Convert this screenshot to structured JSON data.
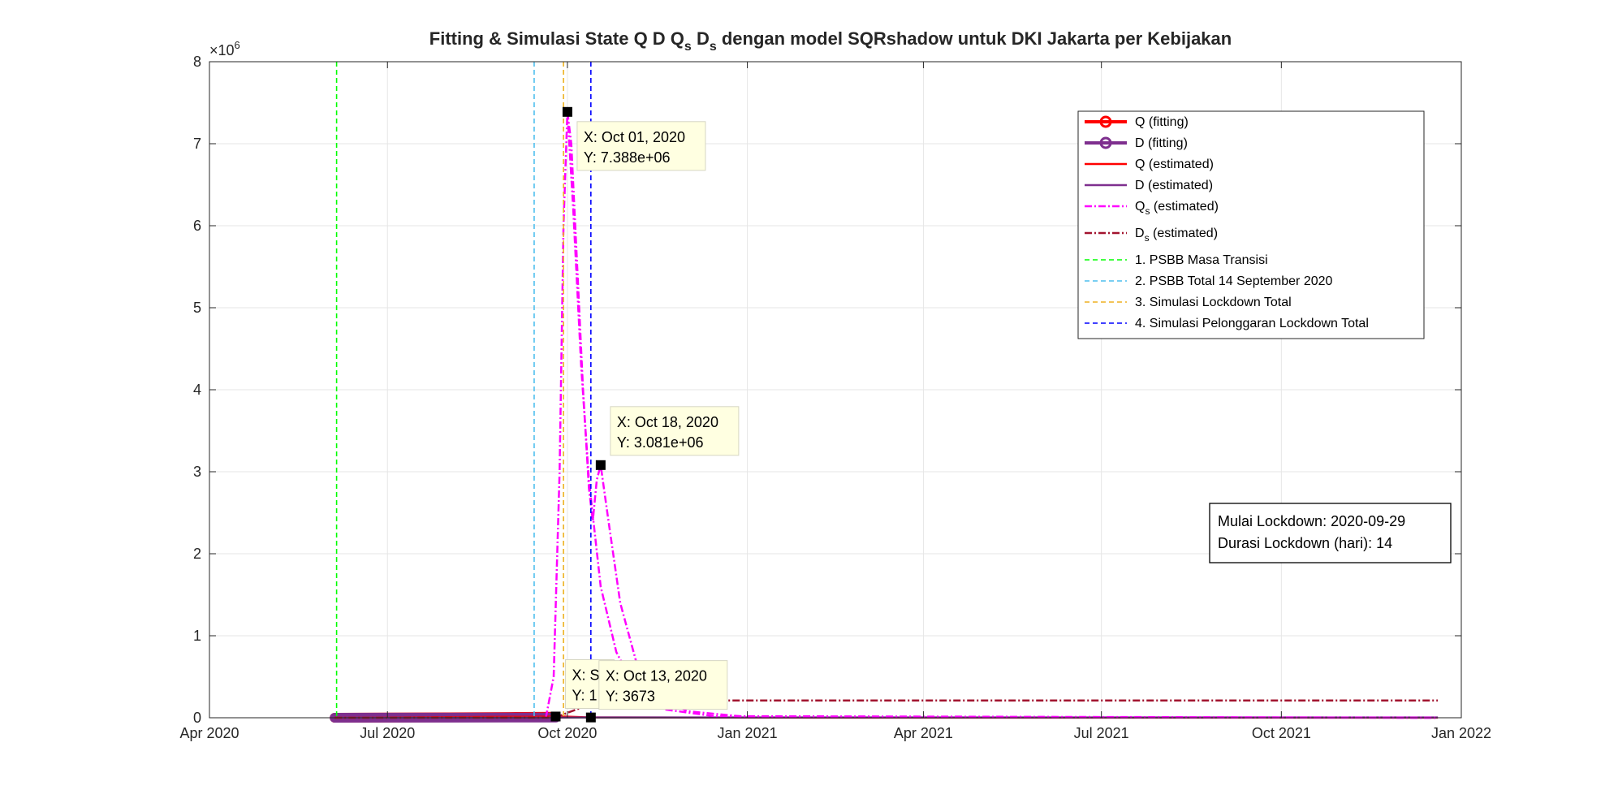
{
  "chart_data": {
    "type": "line",
    "title": {
      "main": "Fitting & Simulasi State  Q D Q",
      "sub1": "s",
      "mid": " D",
      "sub2": "s",
      "tail": " dengan model SQRshadow untuk DKI Jakarta per Kebijakan"
    },
    "exponent_label": {
      "base": "×10",
      "power": "6"
    },
    "xlim": [
      "2020-04-01",
      "2022-01-01"
    ],
    "ylim": [
      0,
      8000000
    ],
    "x_ticks": [
      {
        "date": "2020-04-01",
        "label": "Apr 2020"
      },
      {
        "date": "2020-07-01",
        "label": "Jul 2020"
      },
      {
        "date": "2020-10-01",
        "label": "Oct 2020"
      },
      {
        "date": "2021-01-01",
        "label": "Jan 2021"
      },
      {
        "date": "2021-04-01",
        "label": "Apr 2021"
      },
      {
        "date": "2021-07-01",
        "label": "Jul 2021"
      },
      {
        "date": "2021-10-01",
        "label": "Oct 2021"
      },
      {
        "date": "2022-01-01",
        "label": "Jan 2022"
      }
    ],
    "y_ticks": [
      {
        "value": 0,
        "label": "0"
      },
      {
        "value": 1000000,
        "label": "1"
      },
      {
        "value": 2000000,
        "label": "2"
      },
      {
        "value": 3000000,
        "label": "3"
      },
      {
        "value": 4000000,
        "label": "4"
      },
      {
        "value": 5000000,
        "label": "5"
      },
      {
        "value": 6000000,
        "label": "6"
      },
      {
        "value": 7000000,
        "label": "7"
      },
      {
        "value": 8000000,
        "label": "8"
      }
    ],
    "grid": true,
    "legend_position": "top-right",
    "series": [
      {
        "key": "q_fit",
        "name": "Q (fitting)",
        "color": "#ff0000",
        "style": "solid-marker",
        "points": [
          [
            "2020-06-04",
            0
          ],
          [
            "2020-07-01",
            1500
          ],
          [
            "2020-08-01",
            4500
          ],
          [
            "2020-09-01",
            9000
          ],
          [
            "2020-09-25",
            13000
          ]
        ]
      },
      {
        "key": "d_fit",
        "name": "D (fitting)",
        "color": "#7e2f8e",
        "style": "solid-marker",
        "points": [
          [
            "2020-06-04",
            0
          ],
          [
            "2020-07-01",
            500
          ],
          [
            "2020-08-01",
            1000
          ],
          [
            "2020-09-01",
            1500
          ],
          [
            "2020-09-25",
            2000
          ]
        ]
      },
      {
        "key": "q_est",
        "name": "Q (estimated)",
        "color": "#ff0000",
        "style": "solid",
        "points": [
          [
            "2020-06-04",
            0
          ],
          [
            "2020-09-29",
            15000
          ],
          [
            "2020-10-13",
            4000
          ],
          [
            "2020-12-01",
            2000
          ],
          [
            "2021-12-20",
            1000
          ]
        ]
      },
      {
        "key": "d_est",
        "name": "D (estimated)",
        "color": "#7e2f8e",
        "style": "solid",
        "points": [
          [
            "2020-06-04",
            0
          ],
          [
            "2020-09-29",
            2000
          ],
          [
            "2020-10-13",
            3673
          ],
          [
            "2021-12-20",
            4000
          ]
        ]
      },
      {
        "key": "qs_est",
        "name": "Q",
        "name_sub": "s",
        "name_tail": " (estimated)",
        "color": "#ff00ff",
        "style": "dashdot",
        "points": [
          [
            "2020-09-20",
            0
          ],
          [
            "2020-09-24",
            500000
          ],
          [
            "2020-09-27",
            3000000
          ],
          [
            "2020-09-29",
            6000000
          ],
          [
            "2020-10-01",
            7388000
          ],
          [
            "2020-10-03",
            7000000
          ],
          [
            "2020-10-06",
            5500000
          ],
          [
            "2020-10-09",
            4000000
          ],
          [
            "2020-10-12",
            2800000
          ],
          [
            "2020-10-14",
            2400000
          ],
          [
            "2020-10-16",
            2900000
          ],
          [
            "2020-10-18",
            3081000
          ],
          [
            "2020-10-22",
            2400000
          ],
          [
            "2020-10-28",
            1400000
          ],
          [
            "2020-11-05",
            700000
          ],
          [
            "2020-11-15",
            300000
          ],
          [
            "2020-12-01",
            80000
          ],
          [
            "2021-01-01",
            10000
          ],
          [
            "2021-12-20",
            0
          ]
        ]
      },
      {
        "key": "qs_est_2",
        "name": "",
        "color": "#ff00ff",
        "style": "dashdot",
        "points": [
          [
            "2020-10-01",
            7388000
          ],
          [
            "2020-10-04",
            6200000
          ],
          [
            "2020-10-08",
            4300000
          ],
          [
            "2020-10-12",
            2900000
          ],
          [
            "2020-10-18",
            1600000
          ],
          [
            "2020-10-26",
            800000
          ],
          [
            "2020-11-05",
            350000
          ],
          [
            "2020-11-20",
            100000
          ],
          [
            "2020-12-15",
            20000
          ],
          [
            "2021-12-20",
            0
          ]
        ]
      },
      {
        "key": "ds_est",
        "name": "D",
        "name_sub": "s",
        "name_tail": " (estimated)",
        "color": "#a2142f",
        "style": "dashdot",
        "points": [
          [
            "2020-06-04",
            0
          ],
          [
            "2020-09-25",
            2000
          ],
          [
            "2020-10-01",
            60000
          ],
          [
            "2020-10-10",
            140000
          ],
          [
            "2020-10-25",
            190000
          ],
          [
            "2020-11-10",
            205000
          ],
          [
            "2020-12-01",
            210000
          ],
          [
            "2021-12-20",
            210000
          ]
        ]
      }
    ],
    "policy_lines": [
      {
        "key": "pl1",
        "label": "1. PSBB Masa Transisi",
        "date": "2020-06-05",
        "color": "#00ff00"
      },
      {
        "key": "pl2",
        "label": "2. PSBB Total 14 September 2020",
        "date": "2020-09-14",
        "color": "#4dbeee"
      },
      {
        "key": "pl3",
        "label": "3. Simulasi Lockdown Total",
        "date": "2020-09-29",
        "color": "#edb120"
      },
      {
        "key": "pl4",
        "label": "4. Simulasi Pelonggaran Lockdown Total",
        "date": "2020-10-13",
        "color": "#0000ff"
      }
    ],
    "datatips": [
      {
        "key": "tip1",
        "date": "2020-10-01",
        "value": 7388000,
        "line1": "X: Oct 01, 2020",
        "line2": "Y: 7.388e+06"
      },
      {
        "key": "tip2",
        "date": "2020-10-18",
        "value": 3081000,
        "line1": "X: Oct 18, 2020",
        "line2": "Y: 3.081e+06"
      },
      {
        "key": "tip3",
        "date": "2020-09-25",
        "value": 15000,
        "line1": "X: S",
        "line2": "Y: 1"
      },
      {
        "key": "tip4",
        "date": "2020-10-13",
        "value": 3673,
        "line1": "X: Oct 13, 2020",
        "line2": "Y: 3673"
      }
    ],
    "annotation": {
      "line1": "Mulai Lockdown: 2020-09-29",
      "line2": "Durasi Lockdown (hari): 14"
    }
  }
}
